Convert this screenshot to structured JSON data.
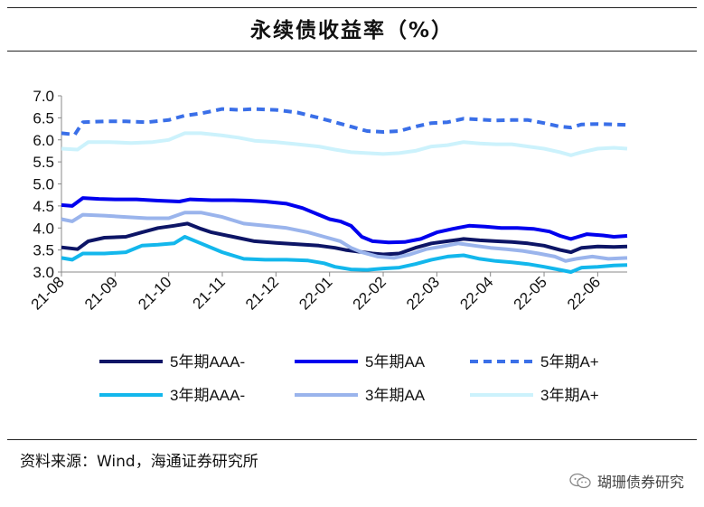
{
  "title": "永续债收益率（%）",
  "source": "资料来源：Wind，海通证券研究所",
  "watermark": "瑚珊债券研究",
  "chart_data": {
    "type": "line",
    "ylim": [
      3.0,
      7.0
    ],
    "yticks": [
      "7.0",
      "6.5",
      "6.0",
      "5.5",
      "5.0",
      "4.5",
      "4.0",
      "3.5",
      "3.0"
    ],
    "xlim": [
      0,
      10.55
    ],
    "xtick_labels": [
      "21-08",
      "21-09",
      "21-10",
      "21-11",
      "21-12",
      "22-01",
      "22-02",
      "22-03",
      "22-04",
      "22-05",
      "22-06"
    ],
    "grid": false,
    "legend_position": "bottom",
    "series": [
      {
        "name": "5年期AAA-",
        "color": "#0d1566",
        "dash": "solid",
        "width": 4,
        "points": [
          [
            0,
            3.56
          ],
          [
            0.3,
            3.52
          ],
          [
            0.5,
            3.7
          ],
          [
            0.8,
            3.78
          ],
          [
            1.2,
            3.8
          ],
          [
            1.5,
            3.9
          ],
          [
            1.8,
            4.0
          ],
          [
            2.1,
            4.05
          ],
          [
            2.35,
            4.1
          ],
          [
            2.6,
            3.98
          ],
          [
            2.8,
            3.9
          ],
          [
            3.2,
            3.8
          ],
          [
            3.6,
            3.7
          ],
          [
            4.0,
            3.66
          ],
          [
            4.4,
            3.63
          ],
          [
            4.8,
            3.6
          ],
          [
            5.1,
            3.55
          ],
          [
            5.3,
            3.5
          ],
          [
            5.5,
            3.47
          ],
          [
            5.8,
            3.42
          ],
          [
            6.0,
            3.4
          ],
          [
            6.3,
            3.42
          ],
          [
            6.6,
            3.55
          ],
          [
            6.9,
            3.65
          ],
          [
            7.2,
            3.7
          ],
          [
            7.5,
            3.75
          ],
          [
            7.8,
            3.72
          ],
          [
            8.1,
            3.7
          ],
          [
            8.4,
            3.68
          ],
          [
            8.7,
            3.65
          ],
          [
            9.0,
            3.6
          ],
          [
            9.3,
            3.5
          ],
          [
            9.5,
            3.45
          ],
          [
            9.7,
            3.55
          ],
          [
            10.0,
            3.58
          ],
          [
            10.3,
            3.57
          ],
          [
            10.55,
            3.58
          ]
        ]
      },
      {
        "name": "5年期AA",
        "color": "#0000ee",
        "dash": "solid",
        "width": 4,
        "points": [
          [
            0,
            4.52
          ],
          [
            0.2,
            4.5
          ],
          [
            0.4,
            4.68
          ],
          [
            0.7,
            4.66
          ],
          [
            1.0,
            4.65
          ],
          [
            1.4,
            4.65
          ],
          [
            1.8,
            4.62
          ],
          [
            2.2,
            4.6
          ],
          [
            2.4,
            4.65
          ],
          [
            2.8,
            4.63
          ],
          [
            3.2,
            4.63
          ],
          [
            3.5,
            4.62
          ],
          [
            3.8,
            4.6
          ],
          [
            4.2,
            4.55
          ],
          [
            4.5,
            4.45
          ],
          [
            4.8,
            4.3
          ],
          [
            5.0,
            4.2
          ],
          [
            5.2,
            4.15
          ],
          [
            5.4,
            4.05
          ],
          [
            5.6,
            3.8
          ],
          [
            5.8,
            3.7
          ],
          [
            6.1,
            3.67
          ],
          [
            6.4,
            3.68
          ],
          [
            6.7,
            3.75
          ],
          [
            7.0,
            3.9
          ],
          [
            7.3,
            3.98
          ],
          [
            7.6,
            4.05
          ],
          [
            7.9,
            4.03
          ],
          [
            8.2,
            4.0
          ],
          [
            8.5,
            4.0
          ],
          [
            8.8,
            3.98
          ],
          [
            9.1,
            3.92
          ],
          [
            9.3,
            3.82
          ],
          [
            9.5,
            3.75
          ],
          [
            9.8,
            3.86
          ],
          [
            10.1,
            3.83
          ],
          [
            10.3,
            3.8
          ],
          [
            10.55,
            3.82
          ]
        ]
      },
      {
        "name": "5年期A+",
        "color": "#3a6fe8",
        "dash": "dashed",
        "width": 4,
        "points": [
          [
            0,
            6.15
          ],
          [
            0.25,
            6.12
          ],
          [
            0.4,
            6.4
          ],
          [
            0.8,
            6.42
          ],
          [
            1.2,
            6.42
          ],
          [
            1.6,
            6.4
          ],
          [
            2.0,
            6.45
          ],
          [
            2.3,
            6.55
          ],
          [
            2.6,
            6.6
          ],
          [
            3.0,
            6.7
          ],
          [
            3.3,
            6.68
          ],
          [
            3.6,
            6.7
          ],
          [
            4.0,
            6.68
          ],
          [
            4.4,
            6.62
          ],
          [
            4.8,
            6.5
          ],
          [
            5.1,
            6.4
          ],
          [
            5.4,
            6.3
          ],
          [
            5.7,
            6.2
          ],
          [
            6.0,
            6.18
          ],
          [
            6.3,
            6.2
          ],
          [
            6.6,
            6.3
          ],
          [
            6.9,
            6.38
          ],
          [
            7.2,
            6.4
          ],
          [
            7.5,
            6.48
          ],
          [
            7.8,
            6.46
          ],
          [
            8.1,
            6.44
          ],
          [
            8.4,
            6.45
          ],
          [
            8.7,
            6.45
          ],
          [
            9.0,
            6.38
          ],
          [
            9.3,
            6.3
          ],
          [
            9.5,
            6.28
          ],
          [
            9.7,
            6.35
          ],
          [
            10.0,
            6.36
          ],
          [
            10.3,
            6.35
          ],
          [
            10.55,
            6.34
          ]
        ]
      },
      {
        "name": "3年期AAA-",
        "color": "#13b7ec",
        "dash": "solid",
        "width": 4,
        "points": [
          [
            0,
            3.32
          ],
          [
            0.2,
            3.28
          ],
          [
            0.4,
            3.42
          ],
          [
            0.8,
            3.42
          ],
          [
            1.2,
            3.45
          ],
          [
            1.5,
            3.6
          ],
          [
            1.8,
            3.62
          ],
          [
            2.1,
            3.65
          ],
          [
            2.3,
            3.8
          ],
          [
            2.6,
            3.65
          ],
          [
            3.0,
            3.45
          ],
          [
            3.4,
            3.3
          ],
          [
            3.8,
            3.28
          ],
          [
            4.2,
            3.28
          ],
          [
            4.6,
            3.26
          ],
          [
            4.9,
            3.2
          ],
          [
            5.1,
            3.12
          ],
          [
            5.4,
            3.06
          ],
          [
            5.7,
            3.05
          ],
          [
            6.0,
            3.08
          ],
          [
            6.3,
            3.1
          ],
          [
            6.6,
            3.18
          ],
          [
            6.9,
            3.28
          ],
          [
            7.2,
            3.35
          ],
          [
            7.5,
            3.38
          ],
          [
            7.8,
            3.3
          ],
          [
            8.1,
            3.25
          ],
          [
            8.4,
            3.22
          ],
          [
            8.7,
            3.18
          ],
          [
            9.0,
            3.12
          ],
          [
            9.3,
            3.05
          ],
          [
            9.5,
            3.0
          ],
          [
            9.7,
            3.1
          ],
          [
            10.0,
            3.12
          ],
          [
            10.3,
            3.15
          ],
          [
            10.55,
            3.16
          ]
        ]
      },
      {
        "name": "3年期AA",
        "color": "#9ab4ec",
        "dash": "solid",
        "width": 4,
        "points": [
          [
            0,
            4.2
          ],
          [
            0.2,
            4.15
          ],
          [
            0.4,
            4.3
          ],
          [
            0.8,
            4.28
          ],
          [
            1.2,
            4.25
          ],
          [
            1.6,
            4.22
          ],
          [
            2.0,
            4.22
          ],
          [
            2.3,
            4.35
          ],
          [
            2.6,
            4.35
          ],
          [
            3.0,
            4.25
          ],
          [
            3.4,
            4.1
          ],
          [
            3.8,
            4.05
          ],
          [
            4.2,
            4.0
          ],
          [
            4.6,
            3.9
          ],
          [
            4.9,
            3.8
          ],
          [
            5.2,
            3.7
          ],
          [
            5.4,
            3.55
          ],
          [
            5.6,
            3.45
          ],
          [
            5.9,
            3.35
          ],
          [
            6.2,
            3.32
          ],
          [
            6.5,
            3.4
          ],
          [
            6.8,
            3.52
          ],
          [
            7.1,
            3.58
          ],
          [
            7.4,
            3.65
          ],
          [
            7.7,
            3.6
          ],
          [
            8.0,
            3.55
          ],
          [
            8.3,
            3.52
          ],
          [
            8.6,
            3.48
          ],
          [
            8.9,
            3.42
          ],
          [
            9.2,
            3.35
          ],
          [
            9.4,
            3.25
          ],
          [
            9.6,
            3.3
          ],
          [
            9.9,
            3.35
          ],
          [
            10.2,
            3.3
          ],
          [
            10.55,
            3.32
          ]
        ]
      },
      {
        "name": "3年期A+",
        "color": "#ccf2fc",
        "dash": "solid",
        "width": 4,
        "points": [
          [
            0,
            5.8
          ],
          [
            0.3,
            5.78
          ],
          [
            0.5,
            5.95
          ],
          [
            0.9,
            5.95
          ],
          [
            1.3,
            5.93
          ],
          [
            1.7,
            5.95
          ],
          [
            2.0,
            6.0
          ],
          [
            2.3,
            6.15
          ],
          [
            2.6,
            6.15
          ],
          [
            3.0,
            6.1
          ],
          [
            3.3,
            6.05
          ],
          [
            3.6,
            5.98
          ],
          [
            4.0,
            5.95
          ],
          [
            4.4,
            5.9
          ],
          [
            4.8,
            5.85
          ],
          [
            5.1,
            5.78
          ],
          [
            5.4,
            5.72
          ],
          [
            5.7,
            5.7
          ],
          [
            6.0,
            5.68
          ],
          [
            6.3,
            5.7
          ],
          [
            6.6,
            5.75
          ],
          [
            6.9,
            5.85
          ],
          [
            7.2,
            5.88
          ],
          [
            7.5,
            5.95
          ],
          [
            7.8,
            5.92
          ],
          [
            8.1,
            5.9
          ],
          [
            8.4,
            5.9
          ],
          [
            8.7,
            5.85
          ],
          [
            9.0,
            5.8
          ],
          [
            9.3,
            5.72
          ],
          [
            9.5,
            5.65
          ],
          [
            9.7,
            5.72
          ],
          [
            10.0,
            5.8
          ],
          [
            10.3,
            5.82
          ],
          [
            10.55,
            5.8
          ]
        ]
      }
    ]
  }
}
